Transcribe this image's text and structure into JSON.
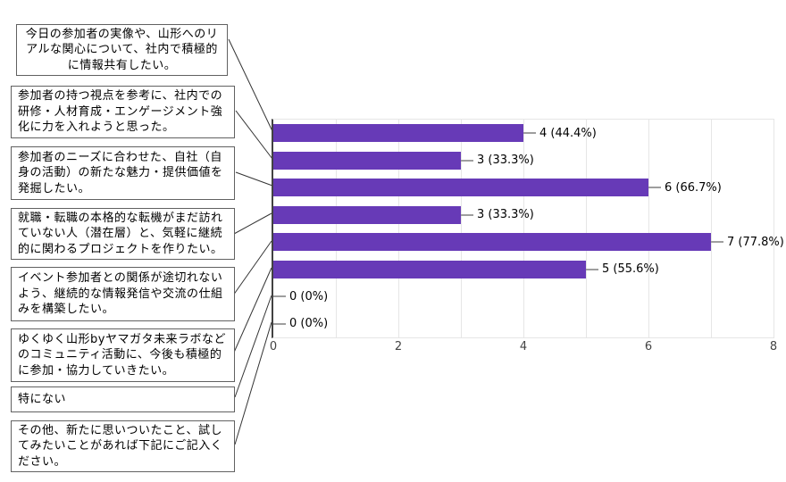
{
  "answers": [
    {
      "text": "今日の参加者の実像や、山形へのリ\nアルな関心について、社内で積極的\nに情報共有したい。"
    },
    {
      "text": "参加者の持つ視点を参考に、社内での\n研修・人材育成・エンゲージメント強\n化に力を入れようと思った。"
    },
    {
      "text": "参加者のニーズに合わせた、自社（自\n身の活動）の新たな魅力・提供価値を\n発掘したい。"
    },
    {
      "text": "就職・転職の本格的な転機がまだ訪れ\nていない人（潜在層）と、気軽に継続\n的に関わるプロジェクトを作りたい。"
    },
    {
      "text": "イベント参加者との関係が途切れない\nよう、継続的な情報発信や交流の仕組\nみを構築したい。"
    },
    {
      "text": "ゆくゆく山形byヤマガタ未来ラボなど\nのコミュニティ活動に、今後も積極的\nに参加・協力していきたい。"
    },
    {
      "text": "特にない"
    },
    {
      "text": "その他、新たに思いついたこと、試し\nてみたいことがあれば下記にご記入く\nださい。"
    }
  ],
  "chart_data": {
    "type": "bar",
    "orientation": "horizontal",
    "title": "",
    "xlabel": "",
    "ylabel": "",
    "categories": [
      "今日の参加者の実像や、山形へのリアルな関心について、社内で積極的に情報共有したい。",
      "参加者の持つ視点を参考に、社内での研修・人材育成・エンゲージメント強化に力を入れようと思った。",
      "参加者のニーズに合わせた、自社（自身の活動）の新たな魅力・提供価値を発掘したい。",
      "就職・転職の本格的な転機がまだ訪れていない人（潜在層）と、気軽に継続的に関わるプロジェクトを作りたい。",
      "イベント参加者との関係が途切れないよう、継続的な情報発信や交流の仕組みを構築したい。",
      "ゆくゆく山形byヤマガタ未来ラボなどのコミュニティ活動に、今後も積極的に参加・協力していきたい。",
      "特にない",
      "その他、新たに思いついたこと、試してみたいことがあれば下記にご記入ください。"
    ],
    "values": [
      4,
      3,
      6,
      3,
      7,
      5,
      0,
      0
    ],
    "bar_labels": [
      "4 (44.4%)",
      "3 (33.3%)",
      "6 (66.7%)",
      "3 (33.3%)",
      "7 (77.8%)",
      "5 (55.6%)",
      "0 (0%)",
      "0 (0%)"
    ],
    "xlim": [
      0,
      8
    ],
    "tick_labels": [
      "0",
      "2",
      "4",
      "6",
      "8"
    ],
    "grid": "on",
    "legend": "none"
  },
  "colors": {
    "bar": "#673ab7",
    "axis": "#424242",
    "grid": "#e6e6e6",
    "whisker": "#9e9e9e",
    "box_border": "#616161",
    "callout_line": "#333333",
    "tick_text": "#444444",
    "label_text": "#000000"
  }
}
